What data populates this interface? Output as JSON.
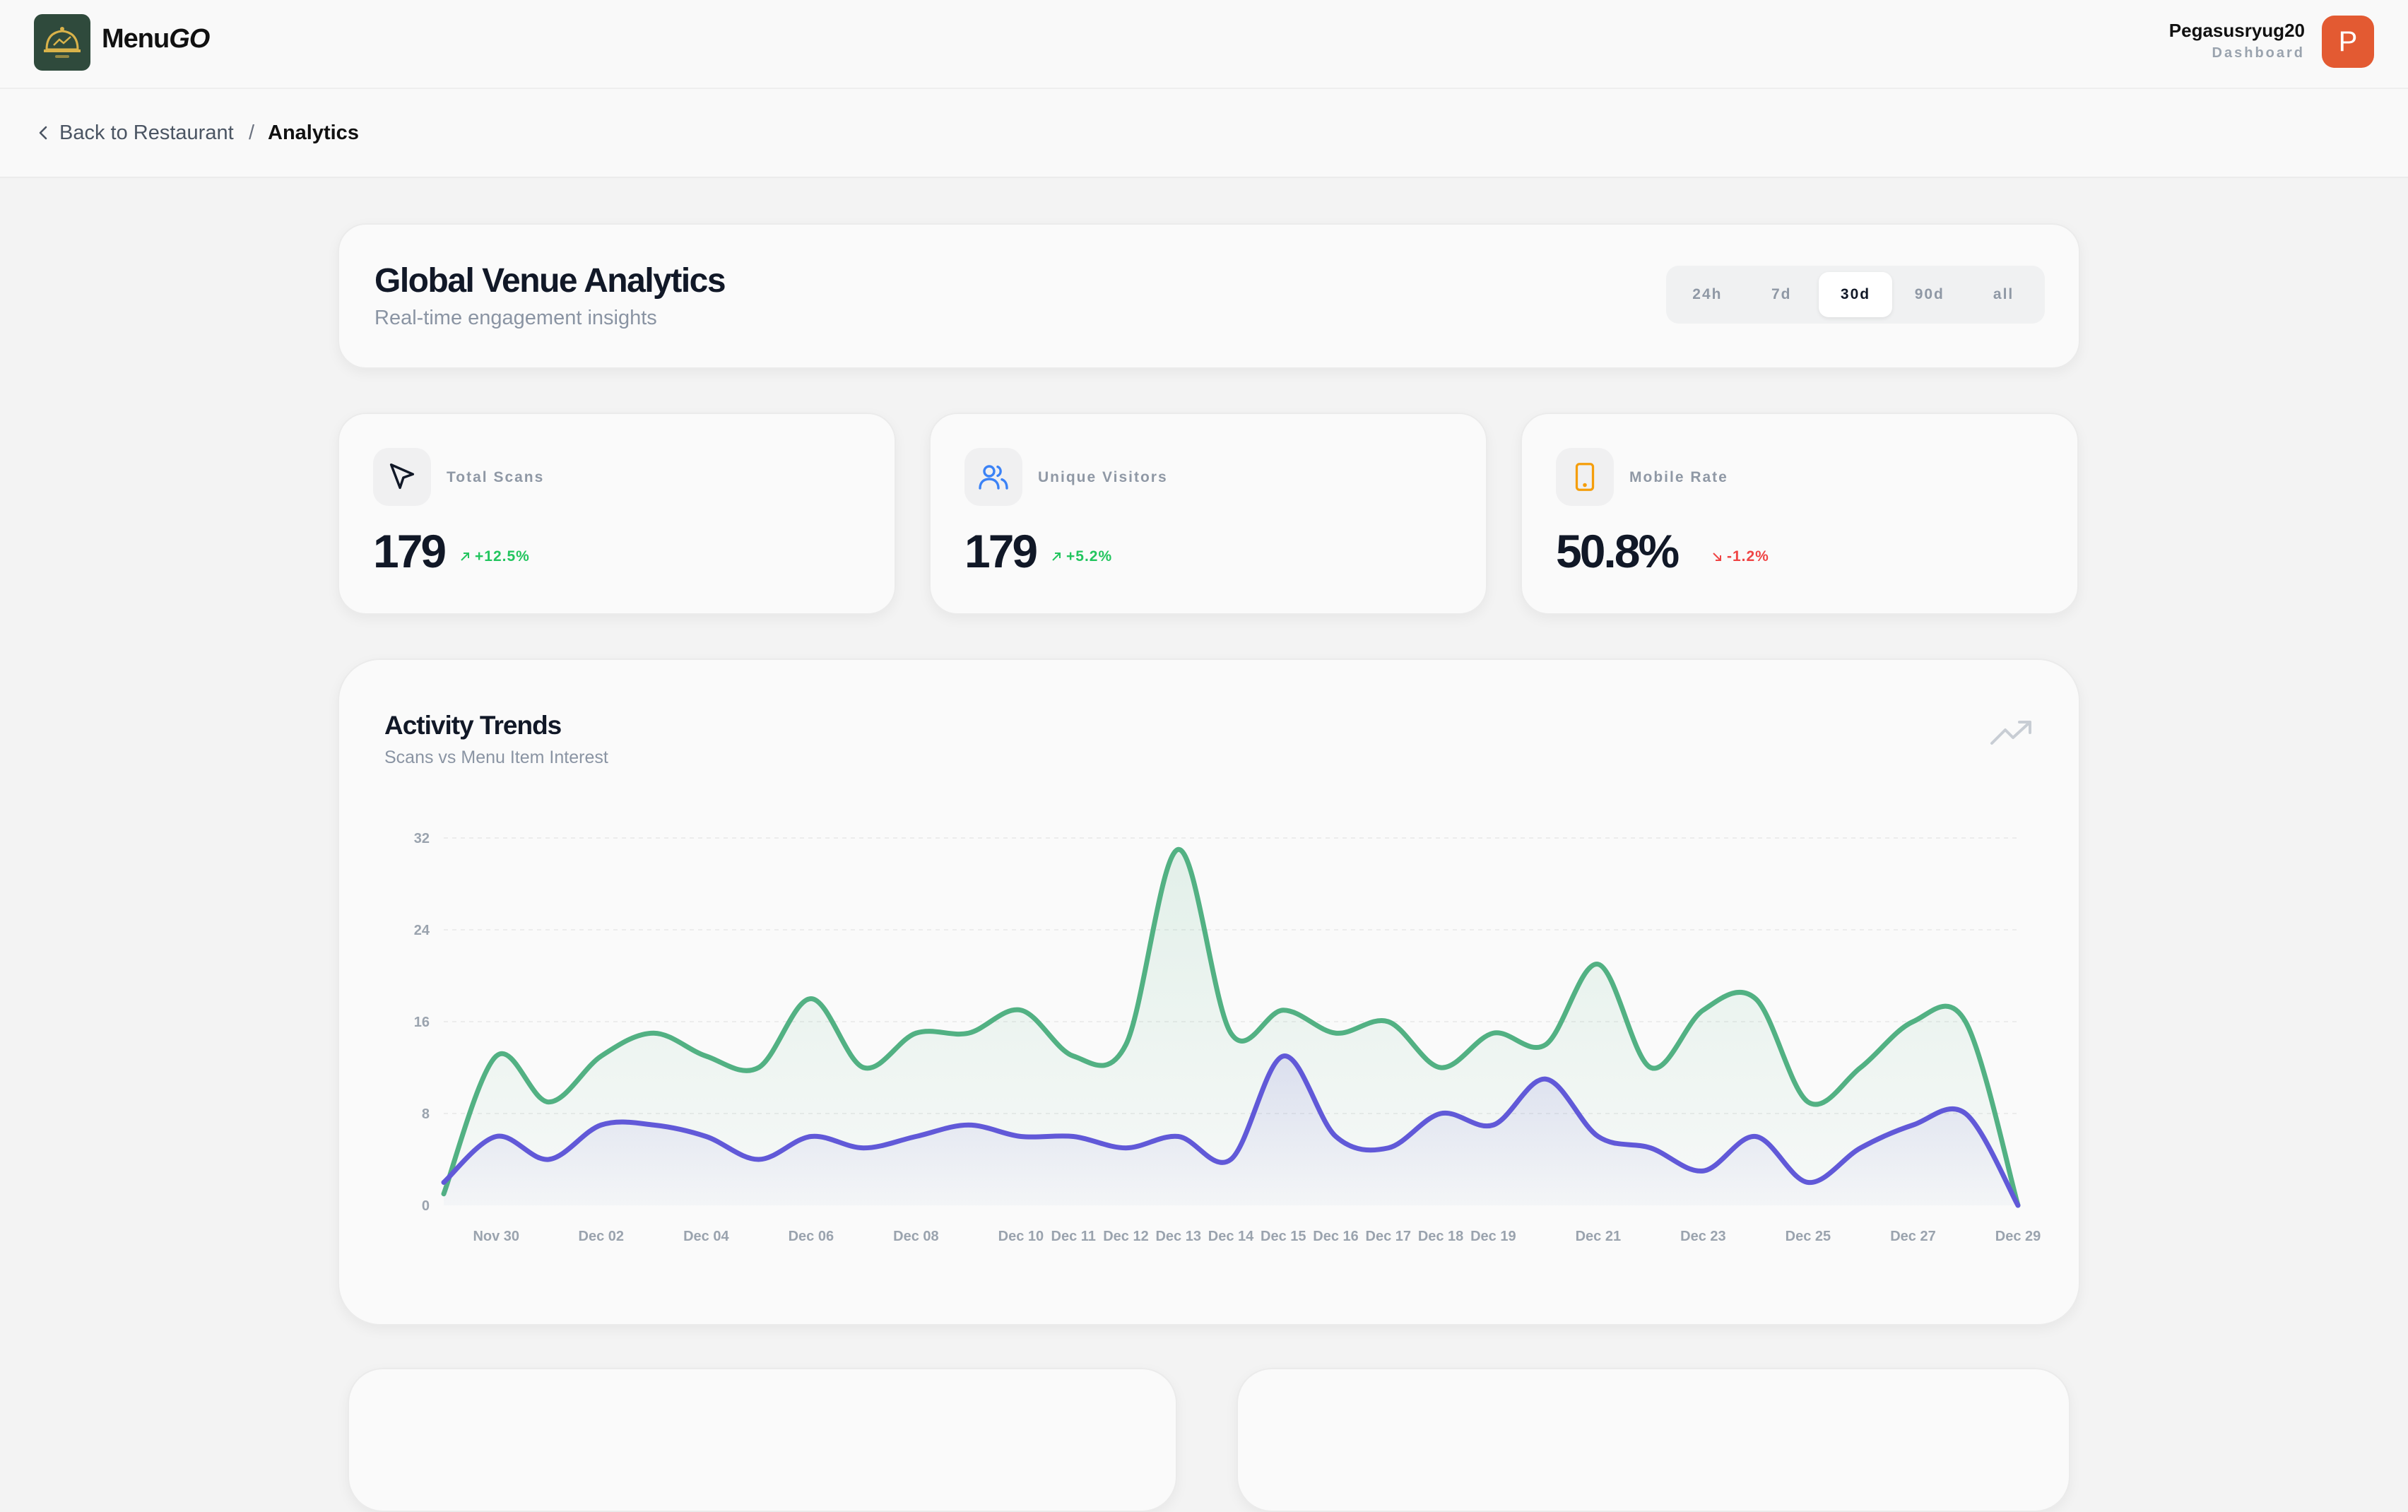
{
  "brand": {
    "name_part1": "Menu",
    "name_part2": "GO",
    "logo_icon": "cloche-logo-icon"
  },
  "user": {
    "name": "Pegasusryug20",
    "role": "Dashboard",
    "avatar_letter": "P"
  },
  "breadcrumb": {
    "back_label": "Back to Restaurant",
    "separator": "/",
    "current": "Analytics"
  },
  "header": {
    "title": "Global Venue Analytics",
    "subtitle": "Real-time engagement insights",
    "ranges": [
      "24h",
      "7d",
      "30d",
      "90d",
      "all"
    ],
    "active_range": "30d"
  },
  "stats": [
    {
      "label": "Total Scans",
      "value": "179",
      "change": "+12.5%",
      "direction": "up",
      "icon": "cursor-pointer-icon",
      "icon_color": "#111827"
    },
    {
      "label": "Unique Visitors",
      "value": "179",
      "change": "+5.2%",
      "direction": "up",
      "icon": "users-icon",
      "icon_color": "#3b82f6"
    },
    {
      "label": "Mobile Rate",
      "value": "50.8%",
      "change": "-1.2%",
      "direction": "down",
      "icon": "mobile-phone-icon",
      "icon_color": "#f59e0b"
    }
  ],
  "activity": {
    "title": "Activity Trends",
    "subtitle": "Scans vs Menu Item Interest",
    "icon": "trending-up-icon"
  },
  "chart_data": {
    "type": "area",
    "title": "Activity Trends",
    "subtitle": "Scans vs Menu Item Interest",
    "x": [
      "Nov 29",
      "Nov 30",
      "Dec 01",
      "Dec 02",
      "Dec 03",
      "Dec 04",
      "Dec 05",
      "Dec 06",
      "Dec 07",
      "Dec 08",
      "Dec 09",
      "Dec 10",
      "Dec 11",
      "Dec 12",
      "Dec 13",
      "Dec 14",
      "Dec 15",
      "Dec 16",
      "Dec 17",
      "Dec 18",
      "Dec 19",
      "Dec 20",
      "Dec 21",
      "Dec 22",
      "Dec 23",
      "Dec 24",
      "Dec 25",
      "Dec 26",
      "Dec 27",
      "Dec 28",
      "Dec 29"
    ],
    "x_tick_labels": [
      "Nov 30",
      "Dec 02",
      "Dec 04",
      "Dec 06",
      "Dec 08",
      "Dec 10",
      "Dec 11",
      "Dec 12",
      "Dec 13",
      "Dec 14",
      "Dec 15",
      "Dec 16",
      "Dec 17",
      "Dec 18",
      "Dec 19",
      "Dec 21",
      "Dec 23",
      "Dec 25",
      "Dec 27",
      "Dec 29"
    ],
    "y_ticks": [
      "0",
      "8",
      "16",
      "24",
      "32"
    ],
    "ylim": [
      0,
      32
    ],
    "grid": "horizontal",
    "series": [
      {
        "values": [
          1,
          13,
          9,
          13,
          15,
          13,
          12,
          18,
          12,
          15,
          15,
          17,
          13,
          14,
          31,
          15,
          17,
          15,
          16,
          12,
          15,
          14,
          21,
          12,
          17,
          18,
          9,
          12,
          16,
          16,
          0
        ],
        "color": "#52b183"
      },
      {
        "values": [
          2,
          6,
          4,
          7,
          7,
          6,
          4,
          6,
          5,
          6,
          7,
          6,
          6,
          5,
          6,
          4,
          13,
          6,
          5,
          8,
          7,
          11,
          6,
          5,
          3,
          6,
          2,
          5,
          7,
          8,
          0
        ],
        "color": "#6159d8"
      }
    ]
  }
}
